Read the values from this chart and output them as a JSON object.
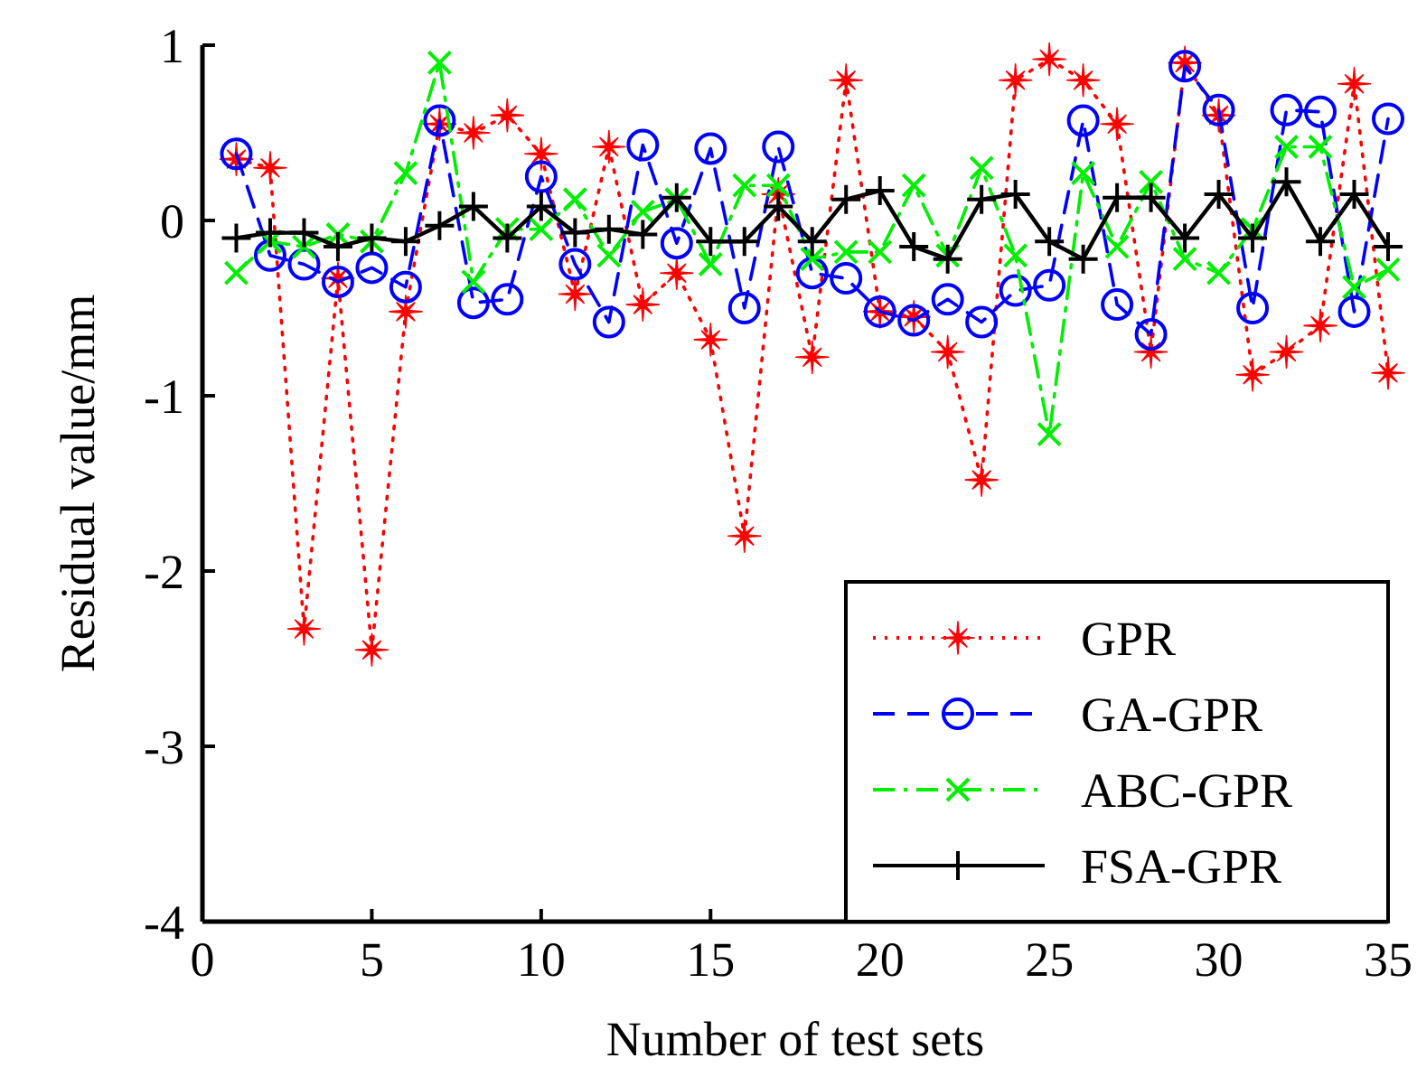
{
  "chart_data": {
    "type": "line",
    "xlabel": "Number of test sets",
    "ylabel": "Residual value/mm",
    "x": [
      1,
      2,
      3,
      4,
      5,
      6,
      7,
      8,
      9,
      10,
      11,
      12,
      13,
      14,
      15,
      16,
      17,
      18,
      19,
      20,
      21,
      22,
      23,
      24,
      25,
      26,
      27,
      28,
      29,
      30,
      31,
      32,
      33,
      34,
      35
    ],
    "xlim": [
      0,
      35
    ],
    "xticks": [
      0,
      5,
      10,
      15,
      20,
      25,
      30,
      35
    ],
    "ylim": [
      -4,
      1
    ],
    "yticks": [
      -4,
      -3,
      -2,
      -1,
      0,
      1
    ],
    "grid": false,
    "legend": "bottom right",
    "series": [
      {
        "name": "GPR",
        "color": "#ff0000",
        "marker": "star",
        "line_style": "dotted",
        "values": [
          0.35,
          0.3,
          -2.33,
          -0.33,
          -2.45,
          -0.52,
          0.55,
          0.5,
          0.6,
          0.38,
          -0.42,
          0.42,
          -0.48,
          -0.3,
          -0.68,
          -1.8,
          0.15,
          -0.78,
          0.8,
          -0.52,
          -0.55,
          -0.75,
          -1.48,
          0.8,
          0.92,
          0.8,
          0.55,
          -0.75,
          0.9,
          0.6,
          -0.88,
          -0.75,
          -0.6,
          0.78,
          -0.87
        ]
      },
      {
        "name": "GA-GPR",
        "color": "#0000ff",
        "marker": "circle",
        "line_style": "dashed",
        "values": [
          0.38,
          -0.2,
          -0.25,
          -0.35,
          -0.27,
          -0.38,
          0.57,
          -0.47,
          -0.45,
          0.25,
          -0.25,
          -0.58,
          0.43,
          -0.13,
          0.41,
          -0.5,
          0.42,
          -0.3,
          -0.33,
          -0.52,
          -0.57,
          -0.45,
          -0.58,
          -0.4,
          -0.37,
          0.57,
          -0.48,
          -0.65,
          0.88,
          0.63,
          -0.5,
          0.63,
          0.62,
          -0.52,
          0.58
        ]
      },
      {
        "name": "ABC-GPR",
        "color": "#00ee00",
        "marker": "x",
        "line_style": "dashdot",
        "values": [
          -0.3,
          -0.12,
          -0.15,
          -0.08,
          -0.12,
          0.27,
          0.9,
          -0.35,
          -0.05,
          -0.05,
          0.12,
          -0.2,
          0.05,
          0.12,
          -0.25,
          0.2,
          0.2,
          -0.22,
          -0.18,
          -0.18,
          0.2,
          -0.2,
          0.3,
          -0.2,
          -1.22,
          0.27,
          -0.15,
          0.22,
          -0.22,
          -0.3,
          -0.05,
          0.42,
          0.42,
          -0.38,
          -0.28
        ]
      },
      {
        "name": "FSA-GPR",
        "color": "#000000",
        "marker": "cross",
        "line_style": "solid",
        "values": [
          -0.1,
          -0.07,
          -0.07,
          -0.15,
          -0.1,
          -0.12,
          -0.03,
          0.08,
          -0.1,
          0.08,
          -0.07,
          -0.05,
          -0.08,
          0.13,
          -0.12,
          -0.12,
          0.08,
          -0.12,
          0.12,
          0.17,
          -0.15,
          -0.22,
          0.12,
          0.15,
          -0.12,
          -0.22,
          0.13,
          0.13,
          -0.1,
          0.15,
          -0.1,
          0.22,
          -0.12,
          0.15,
          -0.15
        ]
      }
    ]
  }
}
